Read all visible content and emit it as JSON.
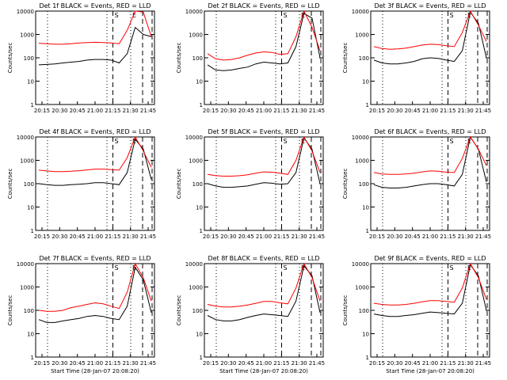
{
  "chart_data": [
    {
      "type": "line",
      "title": "Det 1f BLACK = Events, RED = LLD",
      "ylabel": "Counts/sec",
      "xlabel": "",
      "series": [
        {
          "name": "Events",
          "color": "#000000",
          "values": [
            50,
            52,
            55,
            60,
            65,
            70,
            80,
            85,
            85,
            80,
            60,
            150,
            2000,
            1000,
            800
          ]
        },
        {
          "name": "LLD",
          "color": "#ff0000",
          "values": [
            420,
            400,
            380,
            380,
            400,
            430,
            450,
            460,
            450,
            430,
            400,
            1500,
            10000,
            9000,
            800
          ]
        }
      ]
    },
    {
      "type": "line",
      "title": "Det 2f BLACK = Events, RED = LLD",
      "ylabel": "Counts/sec",
      "xlabel": "",
      "series": [
        {
          "name": "Events",
          "color": "#000000",
          "values": [
            50,
            30,
            28,
            30,
            35,
            40,
            55,
            65,
            60,
            55,
            60,
            300,
            8000,
            5000,
            100
          ]
        },
        {
          "name": "LLD",
          "color": "#ff0000",
          "values": [
            150,
            90,
            80,
            85,
            100,
            130,
            160,
            180,
            170,
            140,
            150,
            800,
            10000,
            2000,
            200
          ]
        }
      ]
    },
    {
      "type": "line",
      "title": "Det 3f BLACK = Events, RED = LLD",
      "ylabel": "Counts/sec",
      "xlabel": "",
      "series": [
        {
          "name": "Events",
          "color": "#000000",
          "values": [
            80,
            60,
            55,
            55,
            60,
            70,
            90,
            100,
            95,
            80,
            70,
            200,
            9000,
            3000,
            100
          ]
        },
        {
          "name": "LLD",
          "color": "#ff0000",
          "values": [
            300,
            250,
            230,
            240,
            260,
            300,
            350,
            380,
            370,
            330,
            300,
            1200,
            10000,
            2500,
            500
          ]
        }
      ]
    },
    {
      "type": "line",
      "title": "Det 4f BLACK = Events, RED = LLD",
      "ylabel": "Counts/sec",
      "xlabel": "",
      "series": [
        {
          "name": "Events",
          "color": "#000000",
          "values": [
            100,
            90,
            85,
            85,
            90,
            95,
            100,
            110,
            110,
            100,
            90,
            300,
            8000,
            3000,
            150
          ]
        },
        {
          "name": "LLD",
          "color": "#ff0000",
          "values": [
            380,
            350,
            330,
            330,
            340,
            360,
            390,
            420,
            420,
            400,
            380,
            1300,
            10000,
            2500,
            500
          ]
        }
      ]
    },
    {
      "type": "line",
      "title": "Det 5f BLACK = Events, RED = LLD",
      "ylabel": "Counts/sec",
      "xlabel": "",
      "series": [
        {
          "name": "Events",
          "color": "#000000",
          "values": [
            100,
            80,
            70,
            70,
            75,
            80,
            95,
            110,
            105,
            95,
            100,
            300,
            9000,
            3000,
            100
          ]
        },
        {
          "name": "LLD",
          "color": "#ff0000",
          "values": [
            250,
            220,
            210,
            210,
            220,
            240,
            280,
            320,
            310,
            280,
            250,
            1000,
            10000,
            2500,
            300
          ]
        }
      ]
    },
    {
      "type": "line",
      "title": "Det 6f BLACK = Events, RED = LLD",
      "ylabel": "Counts/sec",
      "xlabel": "",
      "series": [
        {
          "name": "Events",
          "color": "#000000",
          "values": [
            90,
            70,
            65,
            65,
            70,
            80,
            90,
            100,
            100,
            90,
            80,
            250,
            10000,
            3000,
            120
          ]
        },
        {
          "name": "LLD",
          "color": "#ff0000",
          "values": [
            300,
            260,
            250,
            250,
            260,
            280,
            320,
            350,
            340,
            310,
            300,
            1200,
            10000,
            3000,
            600
          ]
        }
      ]
    },
    {
      "type": "line",
      "title": "Det 7f BLACK = Events, RED = LLD",
      "ylabel": "Counts/sec",
      "xlabel": "",
      "series": [
        {
          "name": "Events",
          "color": "#000000",
          "values": [
            40,
            30,
            30,
            35,
            40,
            45,
            55,
            60,
            55,
            45,
            40,
            150,
            7000,
            2000,
            80
          ]
        },
        {
          "name": "LLD",
          "color": "#ff0000",
          "values": [
            100,
            90,
            90,
            100,
            130,
            150,
            180,
            210,
            190,
            150,
            120,
            600,
            10000,
            2500,
            250
          ]
        }
      ]
    },
    {
      "type": "line",
      "title": "Det 8f BLACK = Events, RED = LLD",
      "ylabel": "Counts/sec",
      "xlabel": "",
      "series": [
        {
          "name": "Events",
          "color": "#000000",
          "values": [
            60,
            40,
            35,
            35,
            40,
            50,
            60,
            70,
            65,
            60,
            55,
            250,
            8000,
            3000,
            80
          ]
        },
        {
          "name": "LLD",
          "color": "#ff0000",
          "values": [
            180,
            150,
            140,
            140,
            150,
            170,
            200,
            240,
            240,
            210,
            190,
            900,
            10000,
            2500,
            250
          ]
        }
      ]
    },
    {
      "type": "line",
      "title": "Det 9f BLACK = Events, RED = LLD",
      "ylabel": "Counts/sec",
      "xlabel": "",
      "series": [
        {
          "name": "Events",
          "color": "#000000",
          "values": [
            70,
            60,
            55,
            55,
            60,
            65,
            75,
            85,
            80,
            75,
            70,
            200,
            9000,
            3000,
            100
          ]
        },
        {
          "name": "LLD",
          "color": "#ff0000",
          "values": [
            200,
            180,
            170,
            170,
            180,
            200,
            230,
            260,
            260,
            240,
            220,
            900,
            10000,
            2500,
            300
          ]
        }
      ]
    }
  ],
  "shared": {
    "xlabel": "Start Time (28-Jan-07 20:08:20)",
    "xticks": [
      "20:15",
      "20:30",
      "20:45",
      "21:00",
      "21:15",
      "21:30",
      "21:45"
    ],
    "yticks": [
      "1",
      "10",
      "100",
      "1000",
      "10000"
    ],
    "markers": [
      "E",
      "S",
      "E",
      "E",
      "S",
      "E",
      "S",
      "E"
    ]
  }
}
